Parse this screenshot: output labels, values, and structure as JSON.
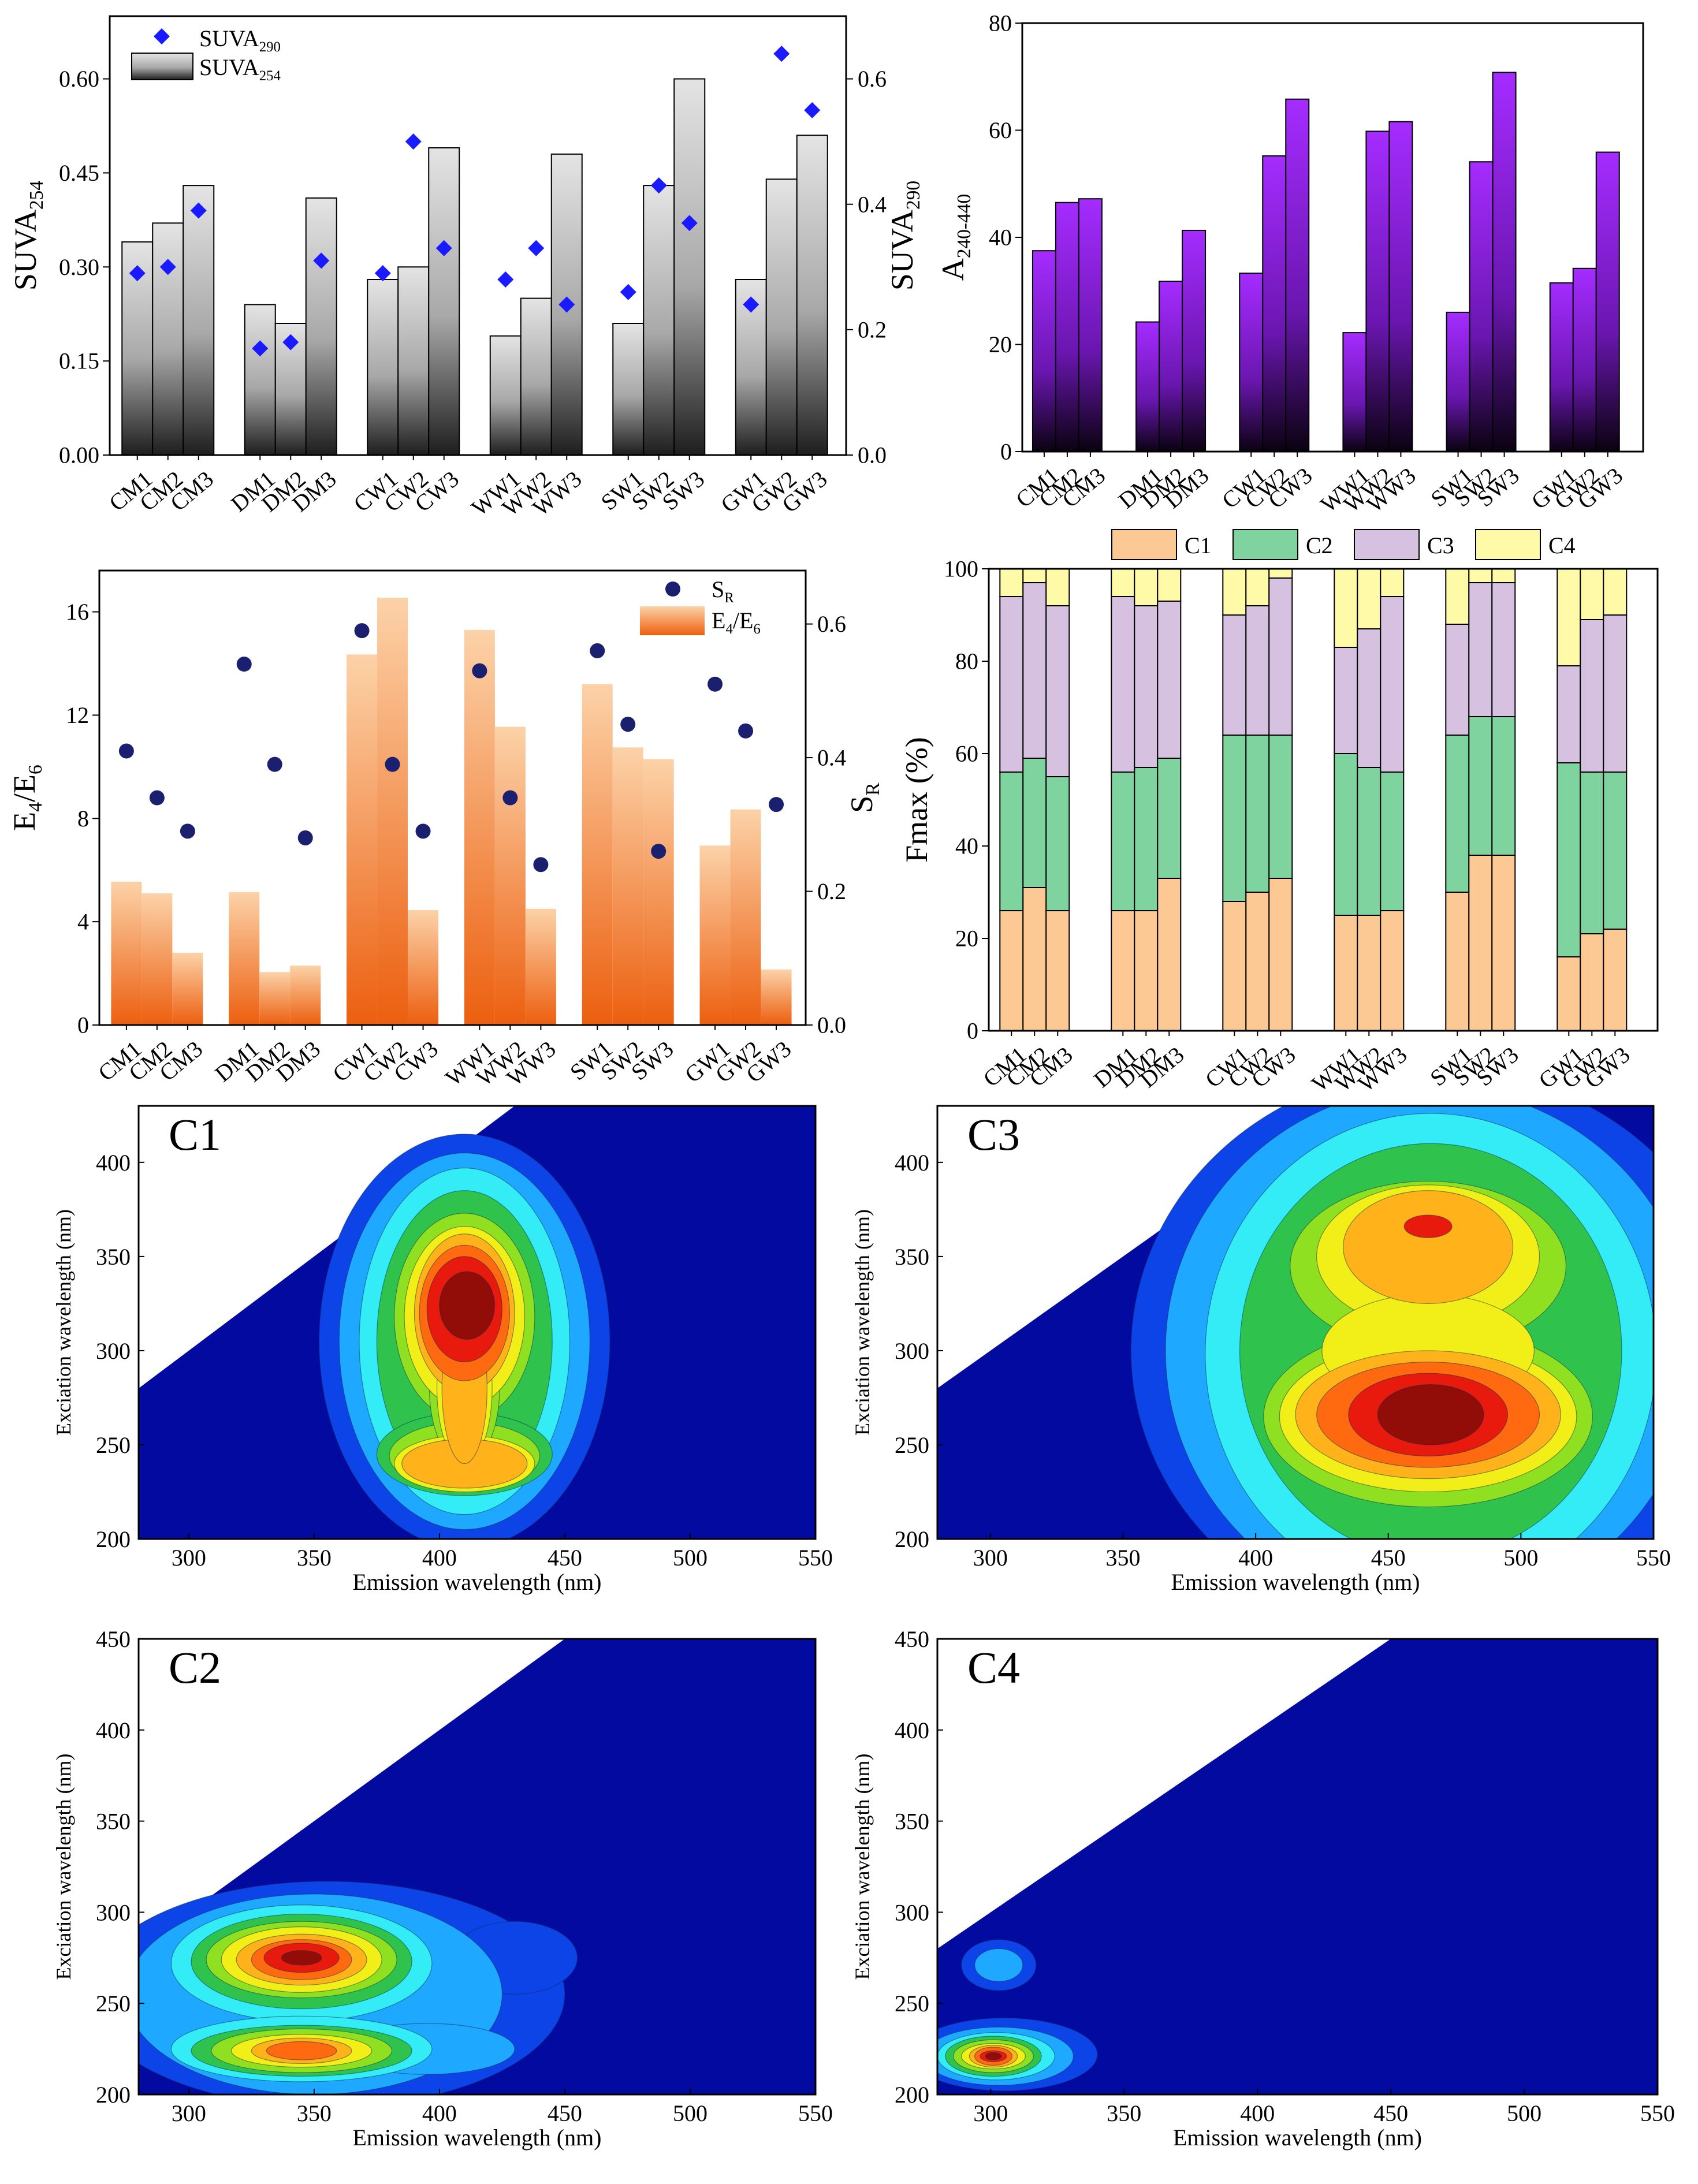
{
  "chart_data": [
    {
      "id": "panel_suva",
      "type": "bar+scatter",
      "categories": [
        "CM1",
        "CM2",
        "CM3",
        "DM1",
        "DM2",
        "DM3",
        "CW1",
        "CW2",
        "CW3",
        "WW1",
        "WW2",
        "WW3",
        "SW1",
        "SW2",
        "SW3",
        "GW1",
        "GW2",
        "GW3"
      ],
      "ylabel": "SUVA",
      "ylabel_sub": "254",
      "y2label": "SUVA",
      "y2label_sub": "290",
      "ylim": [
        0,
        0.7
      ],
      "yticks": [
        "0.00",
        "0.15",
        "0.30",
        "0.45",
        "0.60"
      ],
      "ytick_values": [
        0,
        0.15,
        0.3,
        0.45,
        0.6
      ],
      "y2lim": [
        0,
        0.7
      ],
      "y2ticks": [
        "0.0",
        "0.2",
        "0.4",
        "0.6"
      ],
      "y2tick_values": [
        0,
        0.2,
        0.4,
        0.6
      ],
      "series": [
        {
          "name": "SUVA",
          "sub": "254",
          "kind": "bar",
          "axis": "left",
          "color": "#9a9a9a",
          "values": [
            0.34,
            0.37,
            0.43,
            0.24,
            0.21,
            0.41,
            0.28,
            0.3,
            0.49,
            0.19,
            0.25,
            0.48,
            0.21,
            0.43,
            0.6,
            0.28,
            0.44,
            0.51
          ]
        },
        {
          "name": "SUVA",
          "sub": "290",
          "kind": "scatter",
          "marker": "diamond",
          "axis": "right",
          "color": "#1a1aff",
          "values": [
            0.29,
            0.3,
            0.39,
            0.17,
            0.18,
            0.31,
            0.29,
            0.5,
            0.33,
            0.28,
            0.33,
            0.24,
            0.26,
            0.43,
            0.37,
            0.24,
            0.64,
            0.55
          ]
        }
      ],
      "legend": [
        {
          "label": "SUVA",
          "sub": "290"
        },
        {
          "label": "SUVA",
          "sub": "254"
        }
      ],
      "legend_position": "top-left"
    },
    {
      "id": "panel_a240",
      "type": "bar",
      "categories": [
        "CM1",
        "CM2",
        "CM3",
        "DM1",
        "DM2",
        "DM3",
        "CW1",
        "CW2",
        "CW3",
        "WW1",
        "WW2",
        "WW3",
        "SW1",
        "SW2",
        "SW3",
        "GW1",
        "GW2",
        "GW3"
      ],
      "ylabel": "A",
      "ylabel_sub": "240-440",
      "ylim": [
        0,
        80
      ],
      "yticks": [
        "0",
        "20",
        "40",
        "60",
        "80"
      ],
      "ytick_values": [
        0,
        20,
        40,
        60,
        80
      ],
      "series": [
        {
          "name": "A240-440",
          "color": "#9b1dff",
          "values": [
            37.5,
            46.5,
            47.2,
            24.2,
            31.8,
            41.3,
            33.3,
            55.2,
            65.8,
            22.2,
            59.8,
            61.6,
            26.0,
            54.1,
            70.8,
            31.5,
            34.2,
            55.9
          ]
        }
      ]
    },
    {
      "id": "panel_e4e6",
      "type": "bar+scatter",
      "categories": [
        "CM1",
        "CM2",
        "CM3",
        "DM1",
        "DM2",
        "DM3",
        "CW1",
        "CW2",
        "CW3",
        "WW1",
        "WW2",
        "WW3",
        "SW1",
        "SW2",
        "SW3",
        "GW1",
        "GW2",
        "GW3"
      ],
      "ylabel": "E",
      "ylabel_parts": [
        "E",
        "4",
        "/E",
        "6"
      ],
      "y2label": "S",
      "y2label_sub": "R",
      "ylim": [
        0,
        17.6
      ],
      "yticks": [
        "0",
        "4",
        "8",
        "12",
        "16"
      ],
      "ytick_values": [
        0,
        4,
        8,
        12,
        16
      ],
      "y2lim": [
        0,
        0.68
      ],
      "y2ticks": [
        "0.0",
        "0.2",
        "0.4",
        "0.6"
      ],
      "y2tick_values": [
        0,
        0.2,
        0.4,
        0.6
      ],
      "series": [
        {
          "name": "E4/E6",
          "kind": "bar",
          "axis": "left",
          "color": "#f08a3a",
          "values": [
            5.55,
            5.1,
            2.8,
            5.15,
            2.05,
            2.3,
            14.35,
            16.55,
            4.45,
            15.3,
            11.55,
            4.5,
            13.2,
            10.75,
            10.3,
            6.95,
            8.35,
            2.15
          ]
        },
        {
          "name": "SR",
          "kind": "scatter",
          "marker": "circle",
          "axis": "right",
          "color": "#1a1f70",
          "values": [
            0.41,
            0.34,
            0.29,
            0.54,
            0.39,
            0.28,
            0.59,
            0.39,
            0.29,
            0.53,
            0.34,
            0.24,
            0.56,
            0.45,
            0.26,
            0.51,
            0.44,
            0.33
          ]
        }
      ],
      "legend": [
        {
          "label": "S",
          "sub": "R"
        },
        {
          "label": "E",
          "sub": "4",
          "label2": "/E",
          "sub2": "6"
        }
      ],
      "legend_position": "top-right"
    },
    {
      "id": "panel_fmax",
      "type": "stacked-bar",
      "categories": [
        "CM1",
        "CM2",
        "CM3",
        "DM1",
        "DM2",
        "DM3",
        "CW1",
        "CW2",
        "CW3",
        "WW1",
        "WW2",
        "WW3",
        "SW1",
        "SW2",
        "SW3",
        "GW1",
        "GW2",
        "GW3"
      ],
      "ylabel": "Fmax (%)",
      "ylim": [
        0,
        100
      ],
      "yticks": [
        "0",
        "20",
        "40",
        "60",
        "80",
        "100"
      ],
      "ytick_values": [
        0,
        20,
        40,
        60,
        80,
        100
      ],
      "series": [
        {
          "name": "C1",
          "color": "#fcc894",
          "values": [
            26,
            31,
            26,
            26,
            26,
            33,
            28,
            30,
            33,
            25,
            25,
            26,
            30,
            38,
            38,
            16,
            21,
            22
          ]
        },
        {
          "name": "C2",
          "color": "#7fd39f",
          "values": [
            30,
            28,
            29,
            30,
            31,
            26,
            36,
            34,
            31,
            35,
            32,
            30,
            34,
            30,
            30,
            42,
            35,
            34
          ]
        },
        {
          "name": "C3",
          "color": "#d6c2e0",
          "values": [
            38,
            38,
            37,
            38,
            35,
            34,
            26,
            28,
            34,
            23,
            30,
            38,
            24,
            29,
            29,
            21,
            33,
            34
          ]
        },
        {
          "name": "C4",
          "color": "#fffaa8",
          "values": [
            6,
            3,
            8,
            6,
            8,
            7,
            10,
            8,
            2,
            17,
            13,
            6,
            12,
            3,
            3,
            21,
            11,
            10
          ]
        }
      ],
      "legend_position": "top"
    },
    {
      "id": "panel_c1",
      "type": "heatmap",
      "label": "C1",
      "xlabel": "Emission wavelength (nm)",
      "ylabel": "Exciation wavelength (nm)",
      "xlim": [
        280,
        550
      ],
      "ylim": [
        200,
        430
      ],
      "xticks": [
        "300",
        "350",
        "400",
        "450",
        "500",
        "550"
      ],
      "xtick_values": [
        300,
        350,
        400,
        450,
        500,
        550
      ],
      "yticks": [
        "200",
        "250",
        "300",
        "350",
        "400"
      ],
      "ytick_values": [
        200,
        250,
        300,
        350,
        400
      ],
      "peaks": [
        {
          "em": 410,
          "ex": 320,
          "intensity": 1.0
        },
        {
          "em": 410,
          "ex": 240,
          "intensity": 0.75
        }
      ]
    },
    {
      "id": "panel_c3",
      "type": "heatmap",
      "label": "C3",
      "xlabel": "Emission wavelength (nm)",
      "ylabel": "Exciation wavelength (nm)",
      "xlim": [
        280,
        550
      ],
      "ylim": [
        200,
        430
      ],
      "xticks": [
        "300",
        "350",
        "400",
        "450",
        "500",
        "550"
      ],
      "xtick_values": [
        300,
        350,
        400,
        450,
        500,
        550
      ],
      "yticks": [
        "200",
        "250",
        "300",
        "350",
        "400"
      ],
      "ytick_values": [
        200,
        250,
        300,
        350,
        400
      ],
      "peaks": [
        {
          "em": 465,
          "ex": 265,
          "intensity": 1.0
        },
        {
          "em": 465,
          "ex": 365,
          "intensity": 0.85
        }
      ]
    },
    {
      "id": "panel_c2",
      "type": "heatmap",
      "label": "C2",
      "xlabel": "Emission wavelength (nm)",
      "ylabel": "Exciation wavelength (nm)",
      "xlim": [
        280,
        550
      ],
      "ylim": [
        200,
        450
      ],
      "xticks": [
        "300",
        "350",
        "400",
        "450",
        "500",
        "550"
      ],
      "xtick_values": [
        300,
        350,
        400,
        450,
        500,
        550
      ],
      "yticks": [
        "200",
        "250",
        "300",
        "350",
        "400",
        "450"
      ],
      "ytick_values": [
        200,
        250,
        300,
        350,
        400,
        450
      ],
      "peaks": [
        {
          "em": 345,
          "ex": 275,
          "intensity": 1.0
        },
        {
          "em": 345,
          "ex": 225,
          "intensity": 0.75
        }
      ]
    },
    {
      "id": "panel_c4",
      "type": "heatmap",
      "label": "C4",
      "xlabel": "Emission wavelength (nm)",
      "ylabel": "Exciation wavelength (nm)",
      "xlim": [
        280,
        550
      ],
      "ylim": [
        200,
        450
      ],
      "xticks": [
        "300",
        "350",
        "400",
        "450",
        "500",
        "550"
      ],
      "xtick_values": [
        300,
        350,
        400,
        450,
        500,
        550
      ],
      "yticks": [
        "200",
        "250",
        "300",
        "350",
        "400",
        "450"
      ],
      "ytick_values": [
        200,
        250,
        300,
        350,
        400,
        450
      ],
      "peaks": [
        {
          "em": 300,
          "ex": 220,
          "intensity": 1.0
        },
        {
          "em": 300,
          "ex": 270,
          "intensity": 0.3
        }
      ]
    }
  ]
}
